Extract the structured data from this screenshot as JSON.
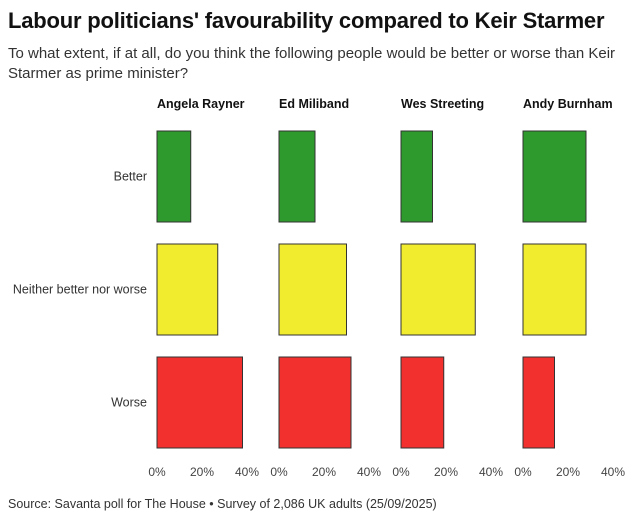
{
  "title": "Labour politicians' favourability compared to Keir Starmer",
  "subtitle": "To what extent, if at all, do you think the following people would be better or worse than Keir Starmer as prime minister?",
  "source": "Source: Savanta poll for The House • Survey of 2,086 UK adults (25/09/2025)",
  "chart_data": {
    "type": "bar",
    "orientation": "horizontal",
    "layout": "small multiples",
    "panels": [
      "Angela Rayner",
      "Ed Miliband",
      "Wes Streeting",
      "Andy Burnham"
    ],
    "categories": [
      "Better",
      "Neither better nor worse",
      "Worse"
    ],
    "category_colors": [
      "#2e9a2e",
      "#f2ec2f",
      "#f2302e"
    ],
    "series": [
      {
        "name": "Angela Rayner",
        "values": [
          15,
          27,
          38
        ]
      },
      {
        "name": "Ed Miliband",
        "values": [
          16,
          30,
          32
        ]
      },
      {
        "name": "Wes Streeting",
        "values": [
          14,
          33,
          19
        ]
      },
      {
        "name": "Andy Burnham",
        "values": [
          28,
          28,
          14
        ]
      }
    ],
    "xlim": [
      0,
      40
    ],
    "xticks": [
      "0%",
      "20%",
      "40%"
    ],
    "unit": "%",
    "grid": false,
    "legend": "none"
  }
}
